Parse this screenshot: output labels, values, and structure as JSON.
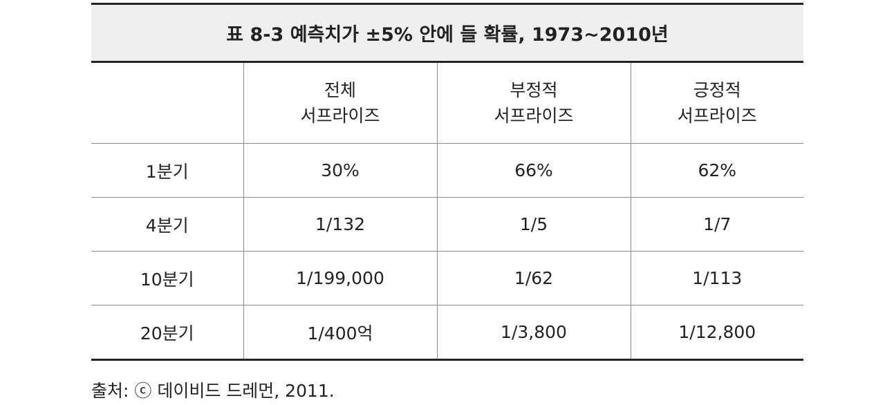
{
  "table": {
    "title": "표 8-3  예측치가 ±5% 안에 들 확률, 1973~2010년",
    "header": [
      [
        "전체",
        "서프라이즈"
      ],
      [
        "부정적",
        "서프라이즈"
      ],
      [
        "긍정적",
        "서프라이즈"
      ]
    ],
    "rows": [
      [
        "1분기",
        "30%",
        "66%",
        "62%"
      ],
      [
        "4분기",
        "1/132",
        "1/5",
        "1/7"
      ],
      [
        "10분기",
        "1/199,000",
        "1/62",
        "1/113"
      ],
      [
        "20분기",
        "1/400억",
        "1/3,800",
        "1/12,800"
      ]
    ]
  },
  "source": "출처: ⓒ 데이비드 드레먼, 2011."
}
